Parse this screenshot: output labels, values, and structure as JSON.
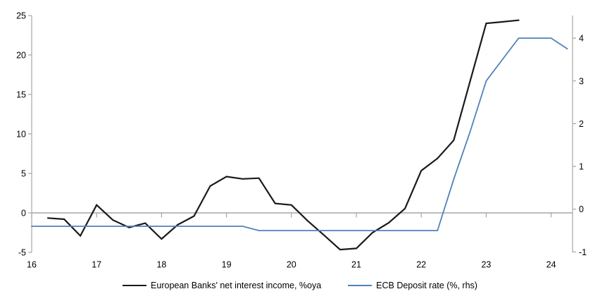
{
  "chart_data": {
    "type": "line",
    "title": "",
    "xlabel": "",
    "ylabel_left": "",
    "ylabel_right": "",
    "grid": "zero-line-only",
    "legend_position": "bottom-center",
    "x_axis": {
      "range": [
        16,
        24.33
      ],
      "ticks": [
        16,
        17,
        18,
        19,
        20,
        21,
        22,
        23,
        24
      ],
      "tick_labels": [
        "16",
        "17",
        "18",
        "19",
        "20",
        "21",
        "22",
        "23",
        "24"
      ]
    },
    "left_axis": {
      "range": [
        -5,
        25
      ],
      "ticks": [
        -5,
        0,
        5,
        10,
        15,
        20,
        25
      ],
      "tick_labels": [
        "-5",
        "0",
        "5",
        "10",
        "15",
        "20",
        "25"
      ]
    },
    "right_axis": {
      "range": [
        -1.01,
        4.53
      ],
      "ticks": [
        -1,
        0,
        1,
        2,
        3,
        4
      ],
      "tick_labels": [
        "-1",
        "0",
        "1",
        "2",
        "3",
        "4"
      ]
    },
    "axis_color": "#a6a6a6",
    "series": [
      {
        "name": "European Banks' net interest income, %oya",
        "axis": "left",
        "color": "#1a1a1a",
        "stroke_width": 2.2,
        "x": [
          16.25,
          16.5,
          16.75,
          17.0,
          17.25,
          17.5,
          17.75,
          18.0,
          18.25,
          18.5,
          18.75,
          19.0,
          19.25,
          19.5,
          19.75,
          20.0,
          20.25,
          20.5,
          20.75,
          21.0,
          21.25,
          21.5,
          21.75,
          22.0,
          22.25,
          22.5,
          22.75,
          23.0,
          23.25,
          23.5
        ],
        "values": [
          -0.65,
          -0.8,
          -2.9,
          1.0,
          -0.9,
          -1.85,
          -1.3,
          -3.3,
          -1.5,
          -0.4,
          3.4,
          4.6,
          4.3,
          4.4,
          1.2,
          1.0,
          -1.0,
          -2.8,
          -4.65,
          -4.5,
          -2.5,
          -1.25,
          0.55,
          5.35,
          6.9,
          9.2,
          16.6,
          24.0,
          24.2,
          24.4
        ]
      },
      {
        "name": "ECB Deposit rate (%, rhs)",
        "axis": "right",
        "color": "#4f81bd",
        "stroke_width": 1.8,
        "x": [
          16.0,
          16.25,
          16.5,
          16.75,
          17.0,
          17.25,
          17.5,
          17.75,
          18.0,
          18.25,
          18.5,
          18.75,
          19.0,
          19.25,
          19.5,
          19.75,
          20.0,
          20.25,
          20.5,
          20.75,
          21.0,
          21.25,
          21.5,
          21.75,
          22.0,
          22.25,
          22.5,
          22.75,
          23.0,
          23.25,
          23.5,
          23.75,
          24.0,
          24.25
        ],
        "values": [
          -0.4,
          -0.4,
          -0.4,
          -0.4,
          -0.4,
          -0.4,
          -0.4,
          -0.4,
          -0.4,
          -0.4,
          -0.4,
          -0.4,
          -0.4,
          -0.4,
          -0.5,
          -0.5,
          -0.5,
          -0.5,
          -0.5,
          -0.5,
          -0.5,
          -0.5,
          -0.5,
          -0.5,
          -0.5,
          -0.5,
          0.7,
          1.8,
          3.0,
          3.5,
          4.0,
          4.0,
          4.0,
          3.75
        ]
      }
    ]
  },
  "legend": {
    "items": [
      {
        "label": "European Banks' net interest income, %oya",
        "color": "#1a1a1a"
      },
      {
        "label": "ECB Deposit rate (%, rhs)",
        "color": "#4f81bd"
      }
    ]
  }
}
